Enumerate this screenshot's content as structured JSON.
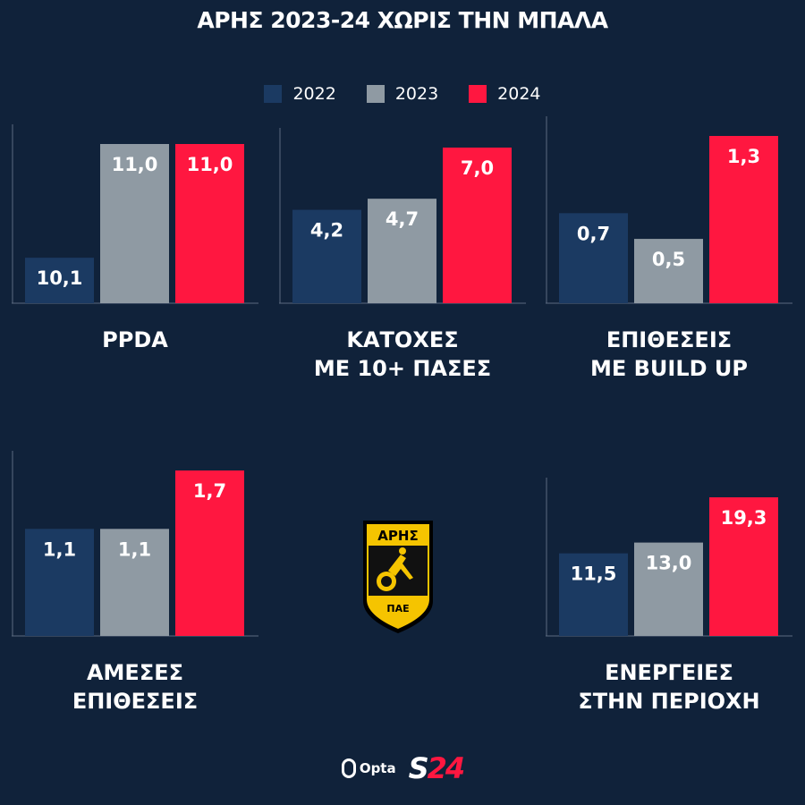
{
  "title": "ΑΡΗΣ 2023-24 ΧΩΡΙΣ ΤΗΝ ΜΠΑΛΑ",
  "colors": {
    "2022": "#1b3a62",
    "2023": "#8f9aa3",
    "2024": "#ff1740",
    "axis": "#5b6b80"
  },
  "crest": {
    "top_text": "ΑΡΗΣ",
    "bottom_text": "ΠΑΕ"
  },
  "footer": {
    "opta": "Opta",
    "s24_a": "S",
    "s24_b": "24"
  },
  "chart_data": [
    {
      "type": "bar",
      "label_lines": [
        "PPDA"
      ],
      "categories": [
        "2022",
        "2023",
        "2024"
      ],
      "values": [
        10.1,
        11.0,
        11.0
      ],
      "value_labels": [
        "10,1",
        "11,0",
        "11,0"
      ]
    },
    {
      "type": "bar",
      "label_lines": [
        "ΚΑΤΟΧΕΣ",
        "ΜΕ 10+ ΠΑΣΕΣ"
      ],
      "categories": [
        "2022",
        "2023",
        "2024"
      ],
      "values": [
        4.2,
        4.7,
        7.0
      ],
      "value_labels": [
        "4,2",
        "4,7",
        "7,0"
      ]
    },
    {
      "type": "bar",
      "label_lines": [
        "ΕΠΙΘΕΣΕΙΣ",
        "ΜΕ BUILD UP"
      ],
      "categories": [
        "2022",
        "2023",
        "2024"
      ],
      "values": [
        0.7,
        0.5,
        1.3
      ],
      "value_labels": [
        "0,7",
        "0,5",
        "1,3"
      ]
    },
    {
      "type": "bar",
      "label_lines": [
        "ΑΜΕΣΕΣ",
        "ΕΠΙΘΕΣΕΙΣ"
      ],
      "categories": [
        "2022",
        "2023",
        "2024"
      ],
      "values": [
        1.1,
        1.1,
        1.7
      ],
      "value_labels": [
        "1,1",
        "1,1",
        "1,7"
      ]
    },
    {
      "type": "bar",
      "label_lines": [
        "ΕΝΕΡΓΕΙΕΣ",
        "ΣΤΗΝ ΠΕΡΙΟΧΗ"
      ],
      "categories": [
        "2022",
        "2023",
        "2024"
      ],
      "values": [
        11.5,
        13.0,
        19.3
      ],
      "value_labels": [
        "11,5",
        "13,0",
        "19,3"
      ]
    }
  ]
}
